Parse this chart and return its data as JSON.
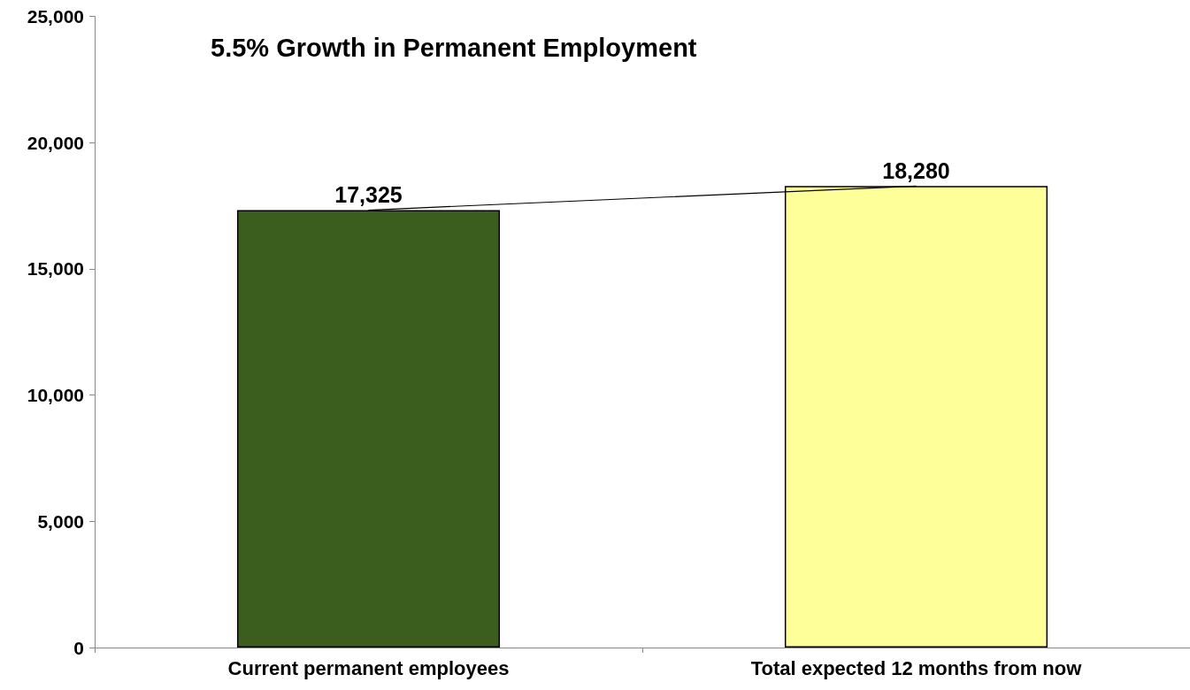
{
  "chart_data": {
    "type": "bar",
    "title": "5.5% Growth in Permanent Employment",
    "categories": [
      "Current permanent employees",
      "Total expected 12 months from now"
    ],
    "series": [
      {
        "colors": [
          "#3b5e1e",
          "#ffff99"
        ],
        "values": [
          17325,
          18280
        ],
        "value_labels": [
          "17,325",
          "18,280"
        ]
      },
      {
        "type": "line",
        "color": "#000000",
        "marker": "none",
        "values": [
          17325,
          18280
        ]
      }
    ],
    "ylim": [
      0,
      25000
    ],
    "yticks": [
      {
        "value": 0,
        "label": "0"
      },
      {
        "value": 5000,
        "label": "5,000"
      },
      {
        "value": 10000,
        "label": "10,000"
      },
      {
        "value": 15000,
        "label": "15,000"
      },
      {
        "value": 20000,
        "label": "20,000"
      },
      {
        "value": 25000,
        "label": "25,000"
      }
    ],
    "grid": false
  }
}
